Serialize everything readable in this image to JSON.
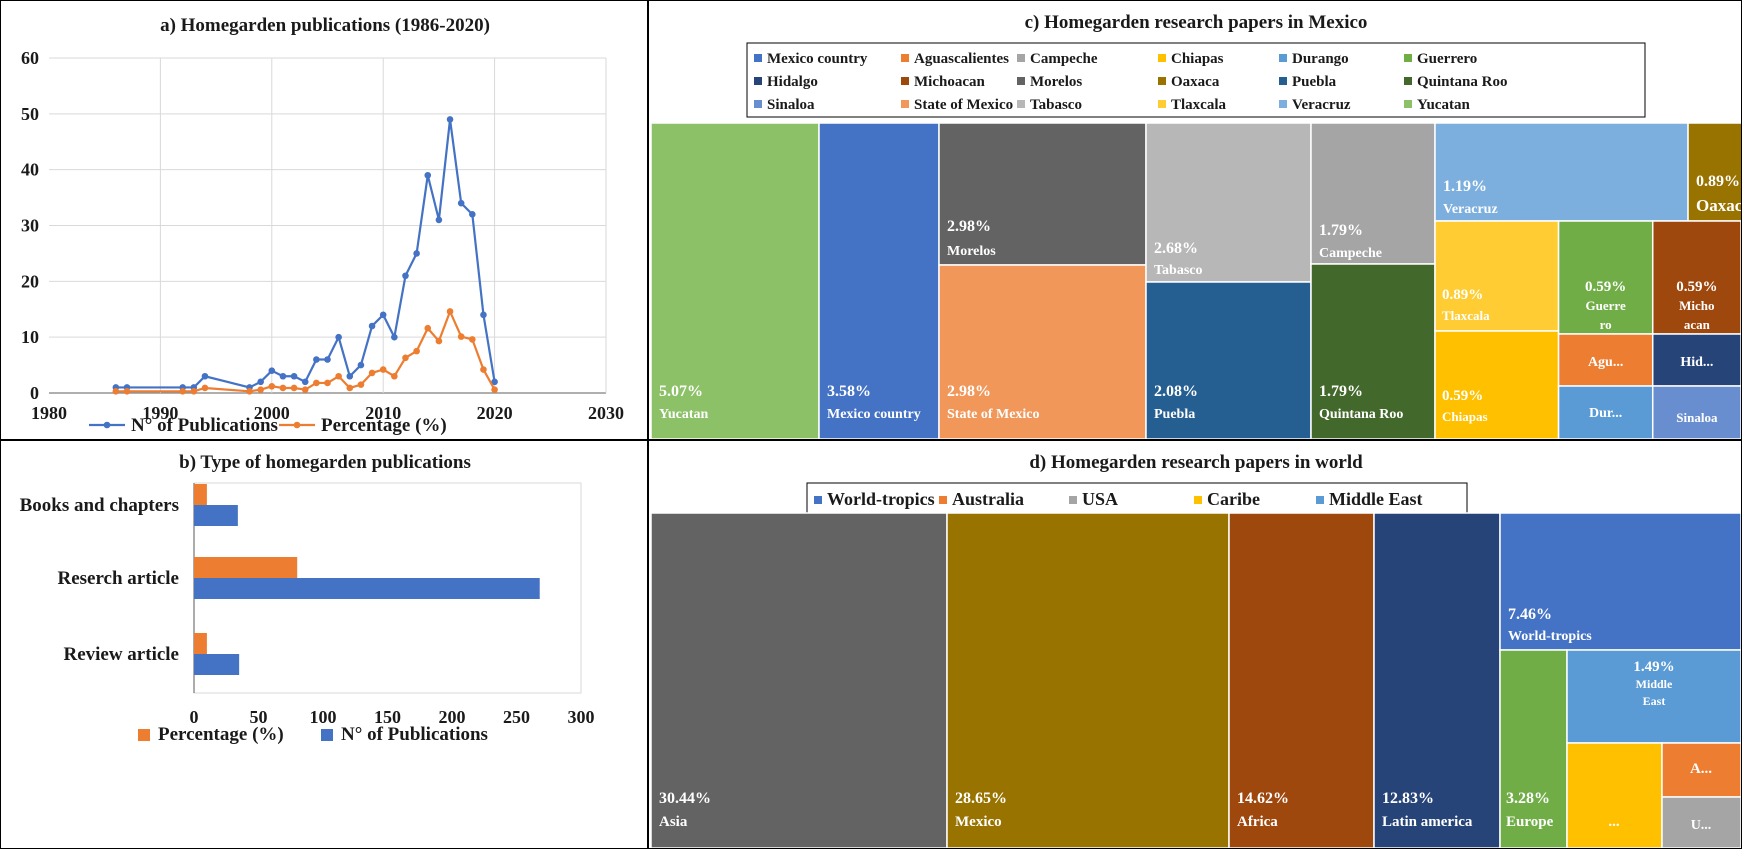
{
  "chart_data": [
    {
      "panel": "a",
      "type": "line",
      "title": "a) Homegarden publications (1986-2020)",
      "xlim": [
        1980,
        2030
      ],
      "ylim": [
        0,
        60
      ],
      "xticks": [
        "1980",
        "1990",
        "2000",
        "2010",
        "2020",
        "2030"
      ],
      "yticks": [
        "0",
        "10",
        "20",
        "30",
        "40",
        "50",
        "60"
      ],
      "grid": true,
      "legend_position": "bottom",
      "series": [
        {
          "name": "N° of Publications",
          "color": "#4472C4",
          "points": [
            [
              1986,
              1
            ],
            [
              1987,
              1
            ],
            [
              1992,
              1
            ],
            [
              1993,
              1
            ],
            [
              1994,
              3
            ],
            [
              1998,
              1
            ],
            [
              1999,
              2
            ],
            [
              2000,
              4
            ],
            [
              2001,
              3
            ],
            [
              2002,
              3
            ],
            [
              2003,
              2
            ],
            [
              2004,
              6
            ],
            [
              2005,
              6
            ],
            [
              2006,
              10
            ],
            [
              2007,
              3
            ],
            [
              2008,
              5
            ],
            [
              2009,
              12
            ],
            [
              2010,
              14
            ],
            [
              2011,
              10
            ],
            [
              2012,
              21
            ],
            [
              2013,
              25
            ],
            [
              2014,
              39
            ],
            [
              2015,
              31
            ],
            [
              2016,
              49
            ],
            [
              2017,
              34
            ],
            [
              2018,
              32
            ],
            [
              2019,
              14
            ],
            [
              2020,
              2
            ]
          ]
        },
        {
          "name": "Percentage (%)",
          "color": "#ED7D31",
          "points": [
            [
              1986,
              0.3
            ],
            [
              1987,
              0.3
            ],
            [
              1992,
              0.3
            ],
            [
              1993,
              0.3
            ],
            [
              1994,
              0.9
            ],
            [
              1998,
              0.3
            ],
            [
              1999,
              0.6
            ],
            [
              2000,
              1.2
            ],
            [
              2001,
              0.9
            ],
            [
              2002,
              0.9
            ],
            [
              2003,
              0.6
            ],
            [
              2004,
              1.8
            ],
            [
              2005,
              1.8
            ],
            [
              2006,
              3
            ],
            [
              2007,
              0.9
            ],
            [
              2008,
              1.5
            ],
            [
              2009,
              3.6
            ],
            [
              2010,
              4.2
            ],
            [
              2011,
              3
            ],
            [
              2012,
              6.3
            ],
            [
              2013,
              7.5
            ],
            [
              2014,
              11.6
            ],
            [
              2015,
              9.3
            ],
            [
              2016,
              14.6
            ],
            [
              2017,
              10.1
            ],
            [
              2018,
              9.6
            ],
            [
              2019,
              4.2
            ],
            [
              2020,
              0.6
            ]
          ]
        }
      ]
    },
    {
      "panel": "b",
      "type": "bar",
      "orientation": "horizontal",
      "title": "b) Type of homegarden publications",
      "categories": [
        "Books and chapters",
        "Reserch article",
        "Review article"
      ],
      "xlim": [
        0,
        300
      ],
      "xticks": [
        "0",
        "50",
        "100",
        "150",
        "200",
        "250",
        "300"
      ],
      "legend_position": "bottom",
      "series": [
        {
          "name": "Percentage (%)",
          "color": "#ED7D31",
          "values": [
            10,
            80,
            10
          ]
        },
        {
          "name": "N° of Publications",
          "color": "#4472C4",
          "values": [
            34,
            268,
            35
          ]
        }
      ]
    },
    {
      "panel": "c",
      "type": "treemap",
      "title": "c) Homegarden research papers in Mexico",
      "legend_position": "top",
      "legend": [
        {
          "name": "Mexico country",
          "color": "#4472C4"
        },
        {
          "name": "Aguascalientes",
          "color": "#ED7D31"
        },
        {
          "name": "Campeche",
          "color": "#A5A5A5"
        },
        {
          "name": "Chiapas",
          "color": "#FFC000"
        },
        {
          "name": "Durango",
          "color": "#5B9BD5"
        },
        {
          "name": "Guerrero",
          "color": "#70AD47"
        },
        {
          "name": "Hidalgo",
          "color": "#264478"
        },
        {
          "name": "Michoacan",
          "color": "#9E480E"
        },
        {
          "name": "Morelos",
          "color": "#636363"
        },
        {
          "name": "Oaxaca",
          "color": "#997300"
        },
        {
          "name": "Puebla",
          "color": "#255E91"
        },
        {
          "name": "Quintana Roo",
          "color": "#43682B"
        },
        {
          "name": "Sinaloa",
          "color": "#698ED0"
        },
        {
          "name": "State of Mexico",
          "color": "#F1975A"
        },
        {
          "name": "Tabasco",
          "color": "#B7B7B7"
        },
        {
          "name": "Tlaxcala",
          "color": "#FFCD33"
        },
        {
          "name": "Veracruz",
          "color": "#7CAFDD"
        },
        {
          "name": "Yucatan",
          "color": "#8CC168"
        }
      ],
      "cells": [
        {
          "name": "Yucatan",
          "value": 5.07,
          "label_pct": "5.07%",
          "label_name": "Yucatan",
          "color": "#8CC168"
        },
        {
          "name": "Mexico country",
          "value": 3.58,
          "label_pct": "3.58%",
          "label_name": "Mexico country",
          "color": "#4472C4"
        },
        {
          "name": "Morelos",
          "value": 2.98,
          "label_pct": "2.98%",
          "label_name": "Morelos",
          "color": "#636363"
        },
        {
          "name": "State of Mexico",
          "value": 2.98,
          "label_pct": "2.98%",
          "label_name": "State of Mexico",
          "color": "#F1975A"
        },
        {
          "name": "Tabasco",
          "value": 2.68,
          "label_pct": "2.68%",
          "label_name": "Tabasco",
          "color": "#B7B7B7"
        },
        {
          "name": "Puebla",
          "value": 2.08,
          "label_pct": "2.08%",
          "label_name": "Puebla",
          "color": "#255E91"
        },
        {
          "name": "Campeche",
          "value": 1.79,
          "label_pct": "1.79%",
          "label_name": "Campeche",
          "color": "#A5A5A5"
        },
        {
          "name": "Quintana Roo",
          "value": 1.79,
          "label_pct": "1.79%",
          "label_name": "Quintana Roo",
          "color": "#43682B"
        },
        {
          "name": "Veracruz",
          "value": 1.19,
          "label_pct": "1.19%",
          "label_name": "Veracruz",
          "color": "#7CAFDD"
        },
        {
          "name": "Oaxaca",
          "value": 0.89,
          "label_pct": "0.89%",
          "label_name": "Oaxaca",
          "color": "#997300"
        },
        {
          "name": "Tlaxcala",
          "value": 0.89,
          "label_pct": "0.89%",
          "label_name": "Tlaxcala",
          "color": "#FFCD33"
        },
        {
          "name": "Chiapas",
          "value": 0.59,
          "label_pct": "0.59%",
          "label_name": "Chiapas",
          "color": "#FFC000"
        },
        {
          "name": "Guerrero",
          "value": 0.59,
          "label_pct": "0.59%",
          "label_name": "Guerre ro",
          "color": "#70AD47"
        },
        {
          "name": "Michoacan",
          "value": 0.59,
          "label_pct": "0.59%",
          "label_name": "Micho acan",
          "color": "#9E480E"
        },
        {
          "name": "Aguascalientes",
          "value": 0.3,
          "label_pct": "",
          "label_name": "Agu...",
          "color": "#ED7D31"
        },
        {
          "name": "Hidalgo",
          "value": 0.3,
          "label_pct": "",
          "label_name": "Hid...",
          "color": "#264478"
        },
        {
          "name": "Durango",
          "value": 0.3,
          "label_pct": "",
          "label_name": "Dur...",
          "color": "#5B9BD5"
        },
        {
          "name": "Sinaloa",
          "value": 0.3,
          "label_pct": "",
          "label_name": "Sinaloa",
          "color": "#698ED0"
        }
      ]
    },
    {
      "panel": "d",
      "type": "treemap",
      "title": "d) Homegarden research papers in world",
      "legend_position": "top",
      "legend": [
        {
          "name": "World-tropics",
          "color": "#4472C4"
        },
        {
          "name": "Australia",
          "color": "#ED7D31"
        },
        {
          "name": "USA",
          "color": "#A5A5A5"
        },
        {
          "name": "Caribe",
          "color": "#FFC000"
        },
        {
          "name": "Middle East",
          "color": "#5B9BD5"
        },
        {
          "name": "Europe",
          "color": "#70AD47"
        },
        {
          "name": "Latin america",
          "color": "#264478"
        },
        {
          "name": "Africa",
          "color": "#9E480E"
        },
        {
          "name": "Asia",
          "color": "#636363"
        },
        {
          "name": "Mexico",
          "color": "#997300"
        }
      ],
      "cells": [
        {
          "name": "Asia",
          "value": 30.44,
          "label_pct": "30.44%",
          "label_name": "Asia",
          "color": "#636363"
        },
        {
          "name": "Mexico",
          "value": 28.65,
          "label_pct": "28.65%",
          "label_name": "Mexico",
          "color": "#997300"
        },
        {
          "name": "Africa",
          "value": 14.62,
          "label_pct": "14.62%",
          "label_name": "Africa",
          "color": "#9E480E"
        },
        {
          "name": "Latin america",
          "value": 12.83,
          "label_pct": "12.83%",
          "label_name": "Latin america",
          "color": "#264478"
        },
        {
          "name": "World-tropics",
          "value": 7.46,
          "label_pct": "7.46%",
          "label_name": "World-tropics",
          "color": "#4472C4"
        },
        {
          "name": "Europe",
          "value": 3.28,
          "label_pct": "3.28%",
          "label_name": "Europe",
          "color": "#70AD47"
        },
        {
          "name": "Middle East",
          "value": 1.49,
          "label_pct": "1.49%",
          "label_name": "Middle East",
          "color": "#5B9BD5"
        },
        {
          "name": "Caribe",
          "value": 0.6,
          "label_pct": "",
          "label_name": "...",
          "color": "#FFC000"
        },
        {
          "name": "Australia",
          "value": 0.3,
          "label_pct": "",
          "label_name": "A...",
          "color": "#ED7D31"
        },
        {
          "name": "USA",
          "value": 0.3,
          "label_pct": "",
          "label_name": "U...",
          "color": "#A5A5A5"
        }
      ]
    }
  ]
}
